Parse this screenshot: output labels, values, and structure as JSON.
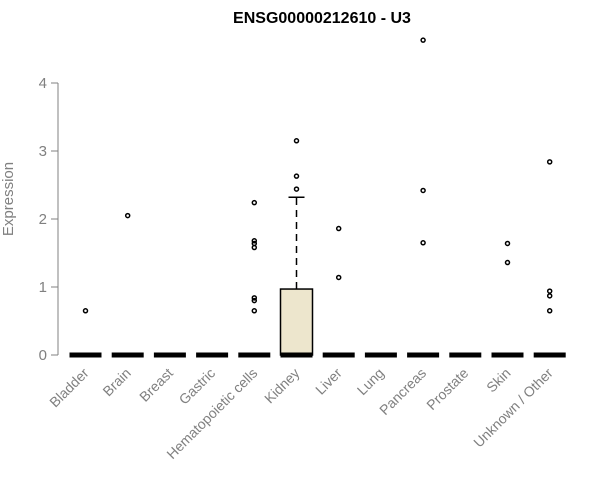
{
  "chart_data": {
    "type": "box",
    "title": "ENSG00000212610 - U3",
    "ylabel": "Expression",
    "xlabel": "",
    "ylim": [
      0,
      4.6
    ],
    "yticks": [
      "0",
      "1",
      "2",
      "3",
      "4"
    ],
    "categories": [
      "Bladder",
      "Brain",
      "Breast",
      "Gastric",
      "Hematopoietic cells",
      "Kidney",
      "Liver",
      "Lung",
      "Pancreas",
      "Prostate",
      "Skin",
      "Unknown / Other"
    ],
    "boxes": [
      {
        "category": "Bladder",
        "q1": 0,
        "median": 0,
        "q3": 0,
        "whisker_low": 0,
        "whisker_high": 0,
        "outliers": [
          0.65
        ]
      },
      {
        "category": "Brain",
        "q1": 0,
        "median": 0,
        "q3": 0,
        "whisker_low": 0,
        "whisker_high": 0,
        "outliers": [
          2.05
        ]
      },
      {
        "category": "Breast",
        "q1": 0,
        "median": 0,
        "q3": 0,
        "whisker_low": 0,
        "whisker_high": 0,
        "outliers": []
      },
      {
        "category": "Gastric",
        "q1": 0,
        "median": 0,
        "q3": 0,
        "whisker_low": 0,
        "whisker_high": 0,
        "outliers": []
      },
      {
        "category": "Hematopoietic cells",
        "q1": 0,
        "median": 0,
        "q3": 0,
        "whisker_low": 0,
        "whisker_high": 0,
        "outliers": [
          2.24,
          1.68,
          1.64,
          1.58,
          0.84,
          0.8,
          0.65
        ]
      },
      {
        "category": "Kidney",
        "q1": 0,
        "median": 0,
        "q3": 0.97,
        "whisker_low": 0,
        "whisker_high": 2.32,
        "outliers": [
          3.15,
          2.63,
          2.44
        ]
      },
      {
        "category": "Liver",
        "q1": 0,
        "median": 0,
        "q3": 0,
        "whisker_low": 0,
        "whisker_high": 0,
        "outliers": [
          1.86,
          1.14
        ]
      },
      {
        "category": "Lung",
        "q1": 0,
        "median": 0,
        "q3": 0,
        "whisker_low": 0,
        "whisker_high": 0,
        "outliers": []
      },
      {
        "category": "Pancreas",
        "q1": 0,
        "median": 0,
        "q3": 0,
        "whisker_low": 0,
        "whisker_high": 0,
        "outliers": [
          4.63,
          2.42,
          1.65
        ]
      },
      {
        "category": "Prostate",
        "q1": 0,
        "median": 0,
        "q3": 0,
        "whisker_low": 0,
        "whisker_high": 0,
        "outliers": []
      },
      {
        "category": "Skin",
        "q1": 0,
        "median": 0,
        "q3": 0,
        "whisker_low": 0,
        "whisker_high": 0,
        "outliers": [
          1.64,
          1.36
        ]
      },
      {
        "category": "Unknown / Other",
        "q1": 0,
        "median": 0,
        "q3": 0,
        "whisker_low": 0,
        "whisker_high": 0,
        "outliers": [
          2.84,
          0.94,
          0.87,
          0.65
        ]
      }
    ],
    "box_fill": "#ede6cd",
    "grid": false
  }
}
